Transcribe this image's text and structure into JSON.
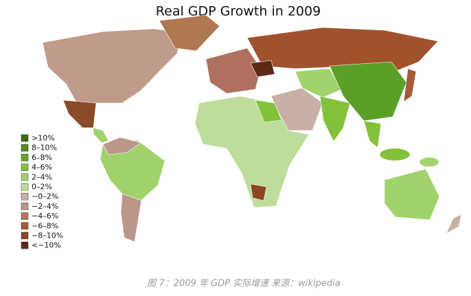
{
  "title": "Real GDP Growth in 2009",
  "legend": [
    {
      "label": ">10%",
      "color": "#3d6b14"
    },
    {
      "label": "8–10%",
      "color": "#4f8c1c"
    },
    {
      "label": "6–8%",
      "color": "#64a824"
    },
    {
      "label": "4–6%",
      "color": "#82c23a"
    },
    {
      "label": "2–4%",
      "color": "#a2d26c"
    },
    {
      "label": "0–2%",
      "color": "#bedc9c"
    },
    {
      "label": "−0–2%",
      "color": "#c8b0a6"
    },
    {
      "label": "−2–4%",
      "color": "#bc968a"
    },
    {
      "label": "−4–6%",
      "color": "#b07a60"
    },
    {
      "label": "−6–8%",
      "color": "#a35c36"
    },
    {
      "label": "−8–10%",
      "color": "#8c4624"
    },
    {
      "label": "<−10%",
      "color": "#5a2a14"
    }
  ],
  "caption": "图 7：2009 年 GDP 实际增速 来源：wikipedia"
}
